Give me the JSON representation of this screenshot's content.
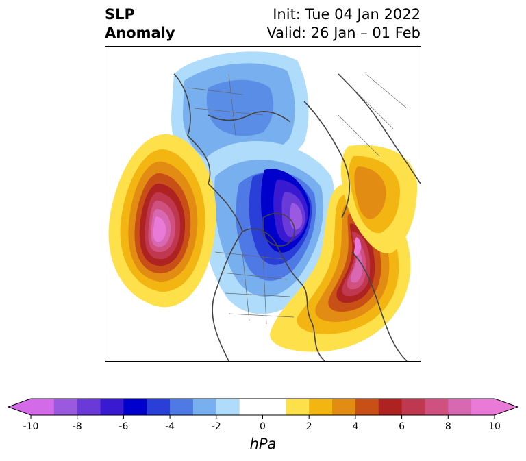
{
  "title": {
    "left_line1": "SLP",
    "left_line2": "Anomaly",
    "right_line1": "Init: Tue 04 Jan 2022",
    "right_line2": "Valid: 26 Jan – 01 Feb"
  },
  "colorbar": {
    "unit": "hPa",
    "min": -10,
    "max": 10,
    "ticks": [
      -10,
      -8,
      -6,
      -4,
      -2,
      0,
      2,
      4,
      6,
      8,
      10
    ],
    "tick_labels": [
      "-10",
      "-8",
      "-6",
      "-4",
      "-2",
      "0",
      "2",
      "4",
      "6",
      "8",
      "10"
    ],
    "extend": "both",
    "colors": [
      "#d36be8",
      "#9b59e0",
      "#6a3ad8",
      "#3a1ad0",
      "#0000cc",
      "#2a3ed8",
      "#4f79e4",
      "#78afee",
      "#aedcfa",
      "#ffffff",
      "#ffffff",
      "#fee14a",
      "#f3b511",
      "#e38c14",
      "#c85016",
      "#ae2222",
      "#c03850",
      "#d05080",
      "#d868b2",
      "#ea7ad8"
    ],
    "under_color": "#d36be8",
    "over_color": "#ea7ad8"
  },
  "map": {
    "projection": "north-polar-stereographic",
    "anomaly_centers": [
      {
        "name": "north-pacific-high",
        "sign": "positive",
        "peak_hpa": 10
      },
      {
        "name": "north-atlantic-high",
        "sign": "positive",
        "peak_hpa": 10
      },
      {
        "name": "arctic-canada-low",
        "sign": "negative",
        "peak_hpa": -8
      },
      {
        "name": "siberian-low",
        "sign": "negative",
        "peak_hpa": -3
      },
      {
        "name": "central-asia-high",
        "sign": "positive",
        "peak_hpa": 4
      }
    ]
  }
}
